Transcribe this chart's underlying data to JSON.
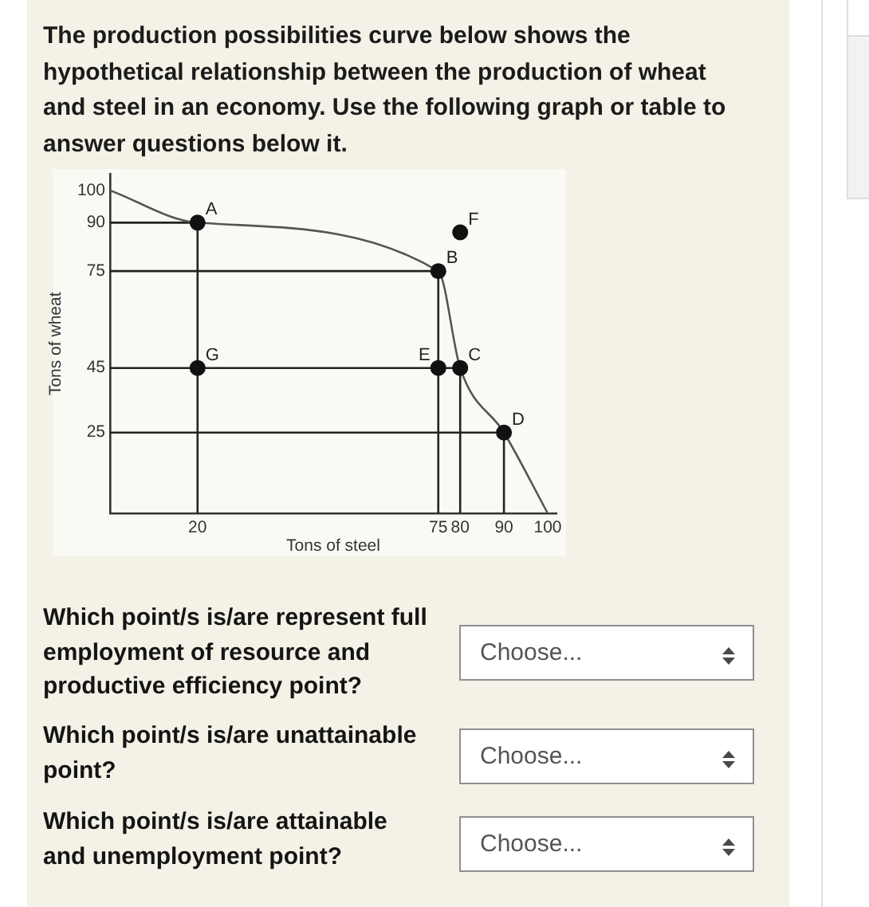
{
  "chart_data": {
    "type": "scatter",
    "title": "The production possibilities curve below shows the hypothetical relationship between the production of wheat and steel in an economy. Use the following graph or table to answer questions below it.",
    "xlabel": "Tons of steel",
    "ylabel": "Tons of wheat",
    "series": [
      {
        "type": "line",
        "color": "#555555",
        "marker": "none",
        "x": [
          0,
          20,
          75,
          80,
          90,
          100
        ],
        "values": [
          100,
          90,
          75,
          45,
          25,
          0
        ]
      },
      {
        "type": "line",
        "color": "#222222",
        "marker": "none",
        "x": [
          0,
          20,
          20
        ],
        "values": [
          90,
          90,
          0
        ]
      },
      {
        "type": "line",
        "color": "#222222",
        "marker": "none",
        "x": [
          0,
          75,
          75
        ],
        "values": [
          75,
          75,
          0
        ]
      },
      {
        "type": "line",
        "color": "#222222",
        "marker": "none",
        "x": [
          0,
          80,
          80
        ],
        "values": [
          45,
          45,
          0
        ]
      },
      {
        "type": "line",
        "color": "#222222",
        "marker": "none",
        "x": [
          0,
          90,
          90
        ],
        "values": [
          25,
          25,
          0
        ]
      },
      {
        "type": "scatter",
        "color": "#111111",
        "marker": "circle",
        "x": [
          20,
          75,
          80,
          90,
          75,
          80,
          20
        ],
        "values": [
          90,
          75,
          45,
          25,
          45,
          87,
          45
        ]
      }
    ],
    "xlim": [
      0,
      102
    ],
    "xticks": [
      20,
      75,
      80,
      90,
      100
    ],
    "ylim": [
      0,
      105
    ],
    "yticks": [
      25,
      45,
      75,
      90,
      100
    ],
    "annotations": [
      {
        "text": "A",
        "x": 20,
        "y": 90
      },
      {
        "text": "B",
        "x": 75,
        "y": 75
      },
      {
        "text": "C",
        "x": 80,
        "y": 45
      },
      {
        "text": "D",
        "x": 90,
        "y": 25
      },
      {
        "text": "E",
        "x": 75,
        "y": 45
      },
      {
        "text": "F",
        "x": 80,
        "y": 87
      },
      {
        "text": "G",
        "x": 20,
        "y": 45
      },
      "Which point/s is/are represent full employment of resource and productive efficiency point?",
      "Choose...",
      "Which point/s is/are unattainable point?",
      "Choose...",
      "Which point/s is/are attainable and unemployment point?",
      "Choose..."
    ]
  }
}
